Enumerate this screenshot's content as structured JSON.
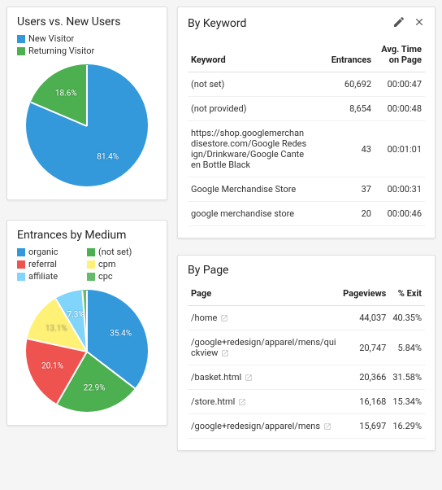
{
  "cards": {
    "users": {
      "title": "Users vs. New Users",
      "type": "pie",
      "size": 150,
      "background_color": "#ffffff",
      "legend": [
        {
          "label": "New Visitor",
          "color": "#3399db"
        },
        {
          "label": "Returning Visitor",
          "color": "#4caf50"
        }
      ],
      "slices": [
        {
          "label": "81.4%",
          "value": 81.4,
          "color": "#3399db"
        },
        {
          "label": "18.6%",
          "value": 18.6,
          "color": "#4caf50"
        }
      ]
    },
    "medium": {
      "title": "Entrances by Medium",
      "type": "pie",
      "size": 150,
      "background_color": "#ffffff",
      "legend": [
        {
          "label": "organic",
          "color": "#3399db"
        },
        {
          "label": "(not set)",
          "color": "#4caf50"
        },
        {
          "label": "referral",
          "color": "#ef5350"
        },
        {
          "label": "cpm",
          "color": "#fff176"
        },
        {
          "label": "affiliate",
          "color": "#81d4fa"
        },
        {
          "label": "cpc",
          "color": "#66bb6a"
        }
      ],
      "slices": [
        {
          "label": "35.4%",
          "value": 35.4,
          "color": "#3399db"
        },
        {
          "label": "22.9%",
          "value": 22.9,
          "color": "#4caf50"
        },
        {
          "label": "20.1%",
          "value": 20.1,
          "color": "#ef5350"
        },
        {
          "label": "13.1%",
          "value": 13.1,
          "color": "#fff176",
          "label_color": "#c9c07a"
        },
        {
          "label": "7.3%",
          "value": 7.3,
          "color": "#81d4fa"
        },
        {
          "label": "",
          "value": 1.2,
          "color": "#66bb6a"
        }
      ]
    },
    "keyword": {
      "title": "By Keyword",
      "type": "table",
      "columns": [
        "Keyword",
        "Entrances",
        "Avg. Time on Page"
      ],
      "rows": [
        [
          "(not set)",
          "60,692",
          "00:00:47"
        ],
        [
          "(not provided)",
          "8,654",
          "00:00:48"
        ],
        [
          "https://shop.googlemerchandisestore.com/Google Redesign/Drinkware/Google Canteen Bottle Black",
          "43",
          "00:01:01"
        ],
        [
          "Google Merchandise Store",
          "37",
          "00:00:31"
        ],
        [
          "google merchandise store",
          "20",
          "00:00:46"
        ]
      ]
    },
    "page": {
      "title": "By Page",
      "type": "table",
      "columns": [
        "Page",
        "Pageviews",
        "% Exit"
      ],
      "rows": [
        [
          "/home",
          "44,037",
          "40.35%"
        ],
        [
          "/google+redesign/apparel/mens/quickview",
          "20,747",
          "5.84%"
        ],
        [
          "/basket.html",
          "20,366",
          "31.58%"
        ],
        [
          "/store.html",
          "16,168",
          "15.34%"
        ],
        [
          "/google+redesign/apparel/mens",
          "15,697",
          "16.29%"
        ]
      ]
    }
  },
  "icons": {
    "edit": "pencil-icon",
    "close": "close-icon",
    "external": "external-link-icon"
  }
}
